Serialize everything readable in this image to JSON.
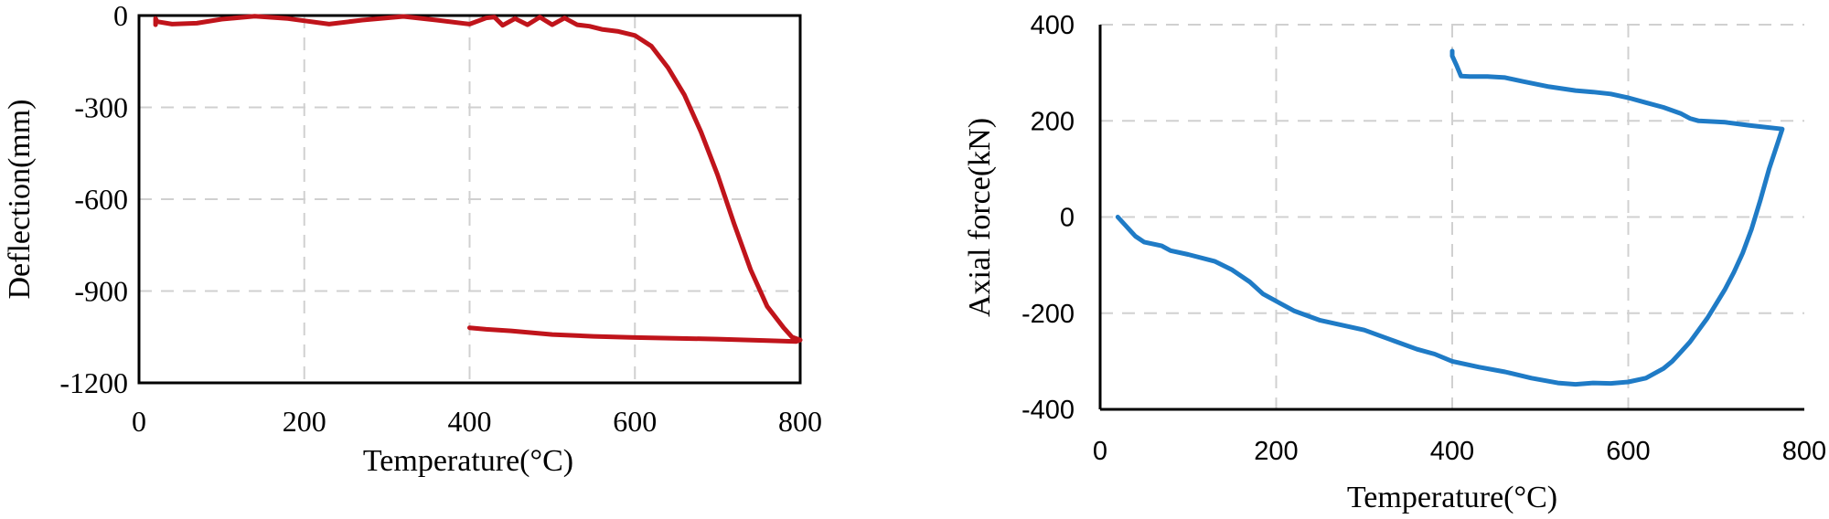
{
  "chart_data": [
    {
      "type": "line",
      "title": "",
      "xlabel": "Temperature(°C)",
      "ylabel": "Deflection(mm)",
      "xlim": [
        0,
        800
      ],
      "ylim": [
        -1200,
        0
      ],
      "xticks": [
        "0",
        "200",
        "400",
        "600",
        "800"
      ],
      "yticks": [
        "0",
        "-300",
        "-600",
        "-900",
        "-1200"
      ],
      "grid": true,
      "frame": "full box",
      "tick_font": "serif",
      "color": "#c0141b",
      "series": [
        {
          "x": [
            20,
            20,
            22,
            40,
            70,
            100,
            140,
            180,
            230,
            270,
            320,
            360,
            400,
            420,
            430,
            440,
            455,
            470,
            485,
            500,
            515,
            530,
            545,
            560,
            580,
            600,
            620,
            640,
            660,
            680,
            700,
            720,
            740,
            760,
            780,
            790,
            800,
            795,
            760,
            700,
            600,
            550,
            500,
            450,
            420,
            400
          ],
          "y": [
            -30,
            -10,
            -20,
            -28,
            -25,
            -12,
            -2,
            -10,
            -28,
            -15,
            -3,
            -15,
            -28,
            -8,
            -5,
            -32,
            -10,
            -30,
            -5,
            -30,
            -8,
            -30,
            -35,
            -45,
            -52,
            -65,
            -100,
            -170,
            -260,
            -380,
            -520,
            -680,
            -830,
            -950,
            -1020,
            -1050,
            -1060,
            -1065,
            -1062,
            -1057,
            -1052,
            -1048,
            -1042,
            -1030,
            -1025,
            -1020
          ]
        }
      ]
    },
    {
      "type": "line",
      "title": "",
      "xlabel": "Temperature(°C)",
      "ylabel": "Axial force(kN)",
      "xlim": [
        0,
        800
      ],
      "ylim": [
        -400,
        400
      ],
      "xticks": [
        "0",
        "200",
        "400",
        "600",
        "800"
      ],
      "yticks": [
        "400",
        "200",
        "0",
        "-200",
        "-400"
      ],
      "grid": true,
      "frame": "left and bottom axes",
      "tick_font": "sans-serif",
      "color": "#1f7bc6",
      "series": [
        {
          "x": [
            20,
            30,
            40,
            50,
            70,
            80,
            100,
            130,
            150,
            170,
            185,
            200,
            220,
            250,
            300,
            330,
            360,
            380,
            400,
            430,
            460,
            490,
            520,
            540,
            560,
            580,
            600,
            620,
            640,
            650,
            660,
            670,
            680,
            690,
            700,
            710,
            720,
            730,
            740,
            750,
            760,
            770,
            775,
            740,
            710,
            680,
            670,
            660,
            640,
            620,
            600,
            580,
            560,
            540,
            510,
            480,
            460,
            440,
            420,
            410,
            405,
            400,
            400
          ],
          "y": [
            0,
            -20,
            -40,
            -52,
            -60,
            -70,
            -78,
            -92,
            -110,
            -135,
            -160,
            -175,
            -195,
            -215,
            -235,
            -255,
            -275,
            -285,
            -300,
            -312,
            -322,
            -335,
            -345,
            -348,
            -345,
            -346,
            -343,
            -335,
            -315,
            -300,
            -280,
            -260,
            -235,
            -210,
            -180,
            -150,
            -115,
            -75,
            -25,
            35,
            100,
            155,
            183,
            190,
            197,
            200,
            205,
            215,
            228,
            238,
            248,
            256,
            260,
            263,
            271,
            282,
            290,
            292,
            292,
            293,
            315,
            335,
            345
          ]
        }
      ]
    }
  ]
}
